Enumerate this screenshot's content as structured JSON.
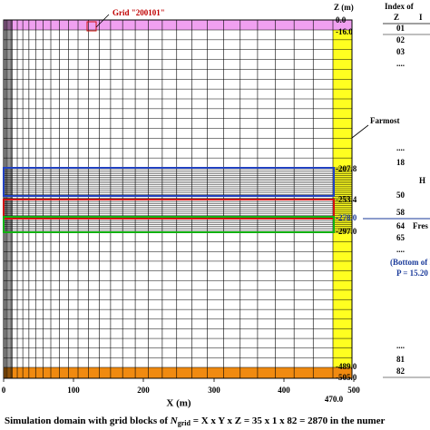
{
  "annotations": {
    "grid_label": "Grid \"200101\"",
    "farmost": "Farmost"
  },
  "x_axis": {
    "title": "X (m)",
    "ticks": [
      "0",
      "100",
      "200",
      "300",
      "400",
      "500"
    ],
    "extent_label": "470.0"
  },
  "z_axis": {
    "title": "Z (m)",
    "labels": [
      "0.0",
      "-16.0",
      "-207.8",
      "-253.4",
      "-278.0",
      "-297.0",
      "-489.0",
      "-505.0"
    ]
  },
  "index_table": {
    "header": "Index of",
    "columns": [
      "Z",
      "I"
    ],
    "rows": [
      "01",
      "02",
      "03",
      "....",
      "....",
      "18",
      "50",
      "58",
      "64",
      "65",
      "....",
      "....",
      "81",
      "82"
    ],
    "notes": [
      "H",
      "Fres",
      "(Bottom of I",
      "P = 15.20"
    ]
  },
  "caption": {
    "prefix": "Simulation domain with grid blocks of ",
    "symbol": "N",
    "subscript": "grid",
    "suffix": " = X x Y x Z = 35 x 1 x 82 = 2870 in the numer"
  }
}
